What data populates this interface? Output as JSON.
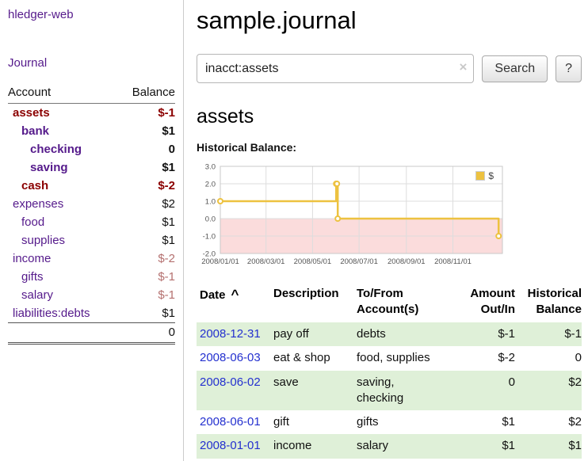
{
  "app": {
    "title": "hledger-web"
  },
  "colors": {
    "link_purple": "#551a8b",
    "link_blue": "#2430cf",
    "negative": "#8b0000",
    "negative_faded": "#b4706f",
    "row_green": "#dff0d8",
    "series": "#edc240",
    "negative_region": "#fbdcdc",
    "grid": "#dddddd",
    "axis_text": "#545454"
  },
  "header": {
    "title": "sample.journal"
  },
  "search": {
    "value": "inacct:assets",
    "clear_icon": "×",
    "search_button": "Search",
    "help_button": "?"
  },
  "sidebar": {
    "journal_link": "Journal",
    "accounts_header": {
      "account": "Account",
      "balance": "Balance"
    },
    "accounts": [
      {
        "name": "assets",
        "balance": "$-1",
        "depth": 1,
        "bold": true,
        "name_negative": true,
        "balance_style": "neg"
      },
      {
        "name": "bank",
        "balance": "$1",
        "depth": 2,
        "bold": true,
        "name_negative": false,
        "balance_style": "plain"
      },
      {
        "name": "checking",
        "balance": "0",
        "depth": 3,
        "bold": true,
        "name_negative": false,
        "balance_style": "plain"
      },
      {
        "name": "saving",
        "balance": "$1",
        "depth": 3,
        "bold": true,
        "name_negative": false,
        "balance_style": "plain"
      },
      {
        "name": "cash",
        "balance": "$-2",
        "depth": 2,
        "bold": true,
        "name_negative": true,
        "balance_style": "neg"
      },
      {
        "name": "expenses",
        "balance": "$2",
        "depth": 1,
        "bold": false,
        "name_negative": false,
        "balance_style": "plain"
      },
      {
        "name": "food",
        "balance": "$1",
        "depth": 2,
        "bold": false,
        "name_negative": false,
        "balance_style": "plain"
      },
      {
        "name": "supplies",
        "balance": "$1",
        "depth": 2,
        "bold": false,
        "name_negative": false,
        "balance_style": "plain"
      },
      {
        "name": "income",
        "balance": "$-2",
        "depth": 1,
        "bold": false,
        "name_negative": false,
        "balance_style": "fade"
      },
      {
        "name": "gifts",
        "balance": "$-1",
        "depth": 2,
        "bold": false,
        "name_negative": false,
        "balance_style": "fade"
      },
      {
        "name": "salary",
        "balance": "$-1",
        "depth": 2,
        "bold": false,
        "name_negative": false,
        "balance_style": "fade"
      },
      {
        "name": "liabilities:debts",
        "balance": "$1",
        "depth": 1,
        "bold": false,
        "name_negative": false,
        "balance_style": "plain"
      }
    ],
    "total": "0"
  },
  "main": {
    "account_title": "assets",
    "chart_label": "Historical Balance:"
  },
  "chart_data": {
    "type": "line-step",
    "title": "Historical Balance",
    "xrange": [
      "2008-01-01",
      "2009-01-05"
    ],
    "ylim": [
      -2.0,
      3.0
    ],
    "yticks": [
      3.0,
      2.0,
      1.0,
      0.0,
      -1.0,
      -2.0
    ],
    "xticks": [
      "2008/01/01",
      "2008/03/01",
      "2008/05/01",
      "2008/07/01",
      "2008/09/01",
      "2008/11/01"
    ],
    "series": [
      {
        "name": "$",
        "points": [
          [
            "2008-01-01",
            1
          ],
          [
            "2008-06-01",
            2
          ],
          [
            "2008-06-02",
            2
          ],
          [
            "2008-06-03",
            0
          ],
          [
            "2008-12-31",
            -1
          ]
        ]
      }
    ],
    "legend_position": "top-right",
    "negative_region_below": 0,
    "grid": true
  },
  "register": {
    "columns": {
      "date": "Date",
      "sort_indicator": "^",
      "description": "Description",
      "account_line1": "To/From",
      "account_line2": "Account(s)",
      "amount_line1": "Amount",
      "amount_line2": "Out/In",
      "balance_line1": "Historical",
      "balance_line2": "Balance"
    },
    "rows": [
      {
        "date": "2008-12-31",
        "description": "pay off",
        "accounts": [
          "debts"
        ],
        "amount": "$-1",
        "amount_negative": true,
        "balance": "$-1",
        "balance_negative": true
      },
      {
        "date": "2008-06-03",
        "description": "eat & shop",
        "accounts": [
          "food, supplies"
        ],
        "amount": "$-2",
        "amount_negative": true,
        "balance": "0",
        "balance_negative": false
      },
      {
        "date": "2008-06-02",
        "description": "save",
        "accounts": [
          "saving,",
          "checking"
        ],
        "amount": "0",
        "amount_negative": false,
        "balance": "$2",
        "balance_negative": false
      },
      {
        "date": "2008-06-01",
        "description": "gift",
        "accounts": [
          "gifts"
        ],
        "amount": "$1",
        "amount_negative": false,
        "balance": "$2",
        "balance_negative": false
      },
      {
        "date": "2008-01-01",
        "description": "income",
        "accounts": [
          "salary"
        ],
        "amount": "$1",
        "amount_negative": false,
        "balance": "$1",
        "balance_negative": false
      }
    ]
  }
}
